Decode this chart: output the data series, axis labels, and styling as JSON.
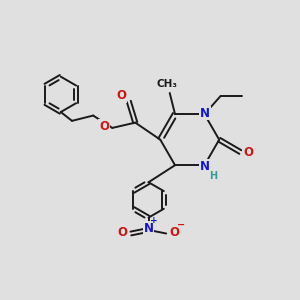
{
  "bg_color": "#e0e0e0",
  "bond_color": "#1a1a1a",
  "bond_width": 1.4,
  "atom_colors": {
    "N": "#1515cc",
    "O": "#cc1515",
    "H": "#3a9a9a"
  },
  "font_size": 8.5,
  "font_size_small": 7.0
}
